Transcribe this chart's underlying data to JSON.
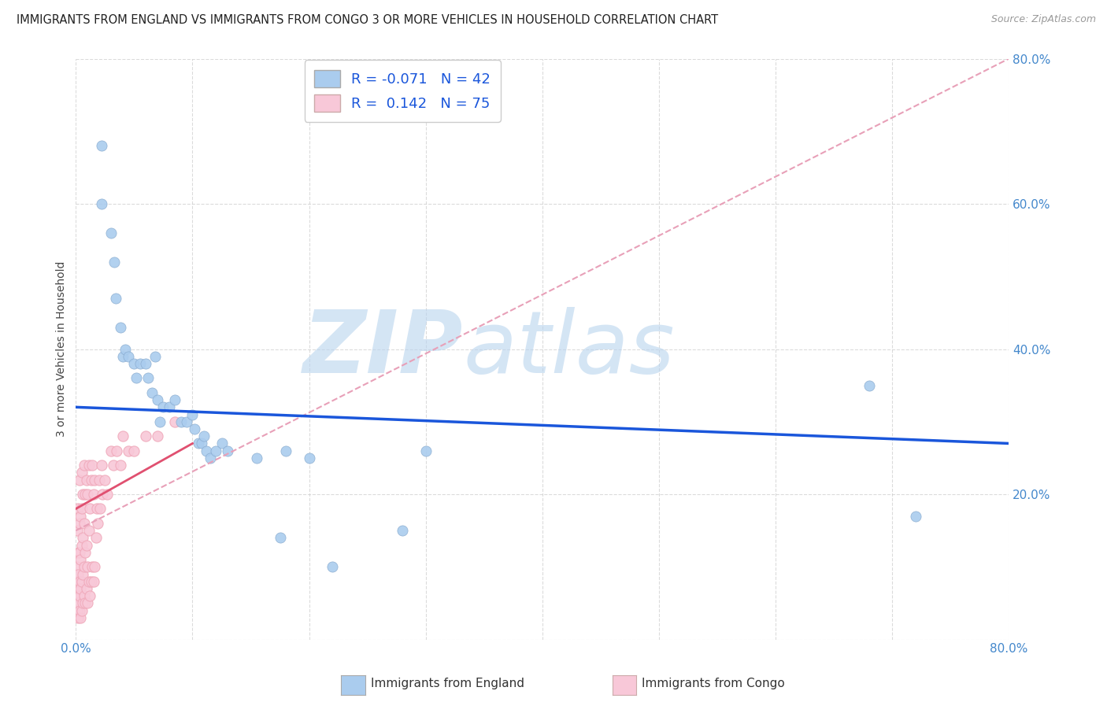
{
  "title": "IMMIGRANTS FROM ENGLAND VS IMMIGRANTS FROM CONGO 3 OR MORE VEHICLES IN HOUSEHOLD CORRELATION CHART",
  "source": "Source: ZipAtlas.com",
  "xlabel_bottom": [
    "Immigrants from England",
    "Immigrants from Congo"
  ],
  "ylabel": "3 or more Vehicles in Household",
  "R_england": -0.071,
  "N_england": 42,
  "R_congo": 0.142,
  "N_congo": 75,
  "xlim": [
    0.0,
    0.8
  ],
  "ylim": [
    0.0,
    0.8
  ],
  "xticks": [
    0.0,
    0.1,
    0.2,
    0.3,
    0.4,
    0.5,
    0.6,
    0.7,
    0.8
  ],
  "yticks": [
    0.0,
    0.2,
    0.4,
    0.6,
    0.8
  ],
  "england_x": [
    0.022,
    0.022,
    0.03,
    0.033,
    0.034,
    0.038,
    0.04,
    0.042,
    0.045,
    0.05,
    0.052,
    0.055,
    0.06,
    0.062,
    0.065,
    0.068,
    0.07,
    0.072,
    0.075,
    0.08,
    0.085,
    0.09,
    0.095,
    0.1,
    0.102,
    0.105,
    0.108,
    0.11,
    0.112,
    0.115,
    0.12,
    0.125,
    0.13,
    0.155,
    0.175,
    0.18,
    0.2,
    0.22,
    0.28,
    0.3,
    0.68,
    0.72
  ],
  "england_y": [
    0.68,
    0.6,
    0.56,
    0.52,
    0.47,
    0.43,
    0.39,
    0.4,
    0.39,
    0.38,
    0.36,
    0.38,
    0.38,
    0.36,
    0.34,
    0.39,
    0.33,
    0.3,
    0.32,
    0.32,
    0.33,
    0.3,
    0.3,
    0.31,
    0.29,
    0.27,
    0.27,
    0.28,
    0.26,
    0.25,
    0.26,
    0.27,
    0.26,
    0.25,
    0.14,
    0.26,
    0.25,
    0.1,
    0.15,
    0.26,
    0.35,
    0.17
  ],
  "congo_x": [
    0.001,
    0.001,
    0.001,
    0.001,
    0.001,
    0.002,
    0.002,
    0.002,
    0.002,
    0.002,
    0.002,
    0.003,
    0.003,
    0.003,
    0.003,
    0.003,
    0.003,
    0.004,
    0.004,
    0.004,
    0.004,
    0.005,
    0.005,
    0.005,
    0.005,
    0.005,
    0.006,
    0.006,
    0.006,
    0.006,
    0.007,
    0.007,
    0.007,
    0.007,
    0.008,
    0.008,
    0.008,
    0.009,
    0.009,
    0.009,
    0.01,
    0.01,
    0.01,
    0.011,
    0.011,
    0.011,
    0.012,
    0.012,
    0.013,
    0.013,
    0.014,
    0.014,
    0.015,
    0.015,
    0.016,
    0.016,
    0.017,
    0.018,
    0.019,
    0.02,
    0.021,
    0.022,
    0.023,
    0.025,
    0.027,
    0.03,
    0.032,
    0.035,
    0.038,
    0.04,
    0.045,
    0.05,
    0.06,
    0.07,
    0.085
  ],
  "congo_y": [
    0.04,
    0.06,
    0.08,
    0.1,
    0.15,
    0.03,
    0.05,
    0.07,
    0.09,
    0.12,
    0.18,
    0.04,
    0.06,
    0.08,
    0.12,
    0.16,
    0.22,
    0.03,
    0.07,
    0.11,
    0.17,
    0.04,
    0.08,
    0.13,
    0.18,
    0.23,
    0.05,
    0.09,
    0.14,
    0.2,
    0.06,
    0.1,
    0.16,
    0.24,
    0.05,
    0.12,
    0.2,
    0.07,
    0.13,
    0.22,
    0.05,
    0.1,
    0.2,
    0.08,
    0.15,
    0.24,
    0.06,
    0.18,
    0.08,
    0.22,
    0.1,
    0.24,
    0.08,
    0.2,
    0.1,
    0.22,
    0.14,
    0.18,
    0.16,
    0.22,
    0.18,
    0.24,
    0.2,
    0.22,
    0.2,
    0.26,
    0.24,
    0.26,
    0.24,
    0.28,
    0.26,
    0.26,
    0.28,
    0.28,
    0.3
  ],
  "england_color": "#aaccee",
  "congo_color": "#f0aabb",
  "congo_fill_color": "#f8c8d8",
  "england_line_color": "#1a56db",
  "congo_line_color": "#e05070",
  "congo_dash_color": "#e8a0b8",
  "watermark": "ZIPatlas",
  "watermark_color": "#c8dff0",
  "background_color": "#ffffff",
  "grid_color": "#cccccc"
}
